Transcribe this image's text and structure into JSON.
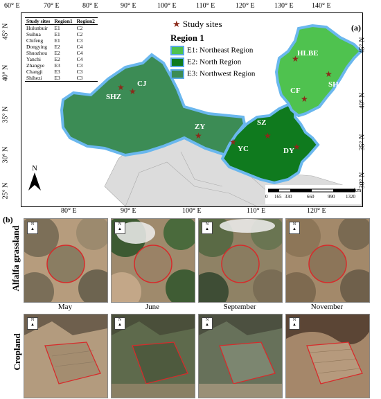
{
  "panel_a_label": "(a)",
  "panel_b_label": "(b)",
  "top_axis": [
    "60° E",
    "70° E",
    "80° E",
    "90° E",
    "100° E",
    "110° E",
    "120° E",
    "130° E",
    "140° E"
  ],
  "bottom_axis": [
    "80° E",
    "90° E",
    "100° E",
    "110° E",
    "120° E"
  ],
  "left_axis": [
    "45° N",
    "40° N",
    "35° N",
    "30° N",
    "25° N"
  ],
  "right_axis": [
    "45° N",
    "40° N",
    "35° N",
    "30° N"
  ],
  "table": {
    "headers": [
      "Study sites",
      "Region1",
      "Region2"
    ],
    "rows": [
      [
        "Hulunbuir",
        "E1",
        "C2"
      ],
      [
        "Suihua",
        "E1",
        "C2"
      ],
      [
        "Chifeng",
        "E1",
        "C3"
      ],
      [
        "Dongying",
        "E2",
        "C4"
      ],
      [
        "Shuozhou",
        "E2",
        "C4"
      ],
      [
        "Yanchi",
        "E2",
        "C4"
      ],
      [
        "Zhangye",
        "E3",
        "C3"
      ],
      [
        "Changji",
        "E3",
        "C3"
      ],
      [
        "Shihezi",
        "E3",
        "C3"
      ]
    ]
  },
  "legend": {
    "sites_label": "Study sites",
    "region_title": "Region 1",
    "items": [
      {
        "label": "E1: Northeast Region",
        "color": "#4fc24f"
      },
      {
        "label": "E2: North Region",
        "color": "#0f7a1e"
      },
      {
        "label": "E3: Northwest Region",
        "color": "#3c8c55"
      }
    ]
  },
  "site_labels": [
    "HLBE",
    "SH",
    "CF",
    "SZ",
    "DY",
    "YC",
    "ZY",
    "CJ",
    "SHZ"
  ],
  "north_label": "N",
  "scale": {
    "ticks": [
      "0",
      "165",
      "330",
      "660",
      "990",
      "1320"
    ],
    "unit": "km"
  },
  "row_labels": [
    "Alfalfa grassland",
    "Cropland"
  ],
  "months": [
    "May",
    "June",
    "September",
    "November"
  ],
  "mini_north": "N"
}
